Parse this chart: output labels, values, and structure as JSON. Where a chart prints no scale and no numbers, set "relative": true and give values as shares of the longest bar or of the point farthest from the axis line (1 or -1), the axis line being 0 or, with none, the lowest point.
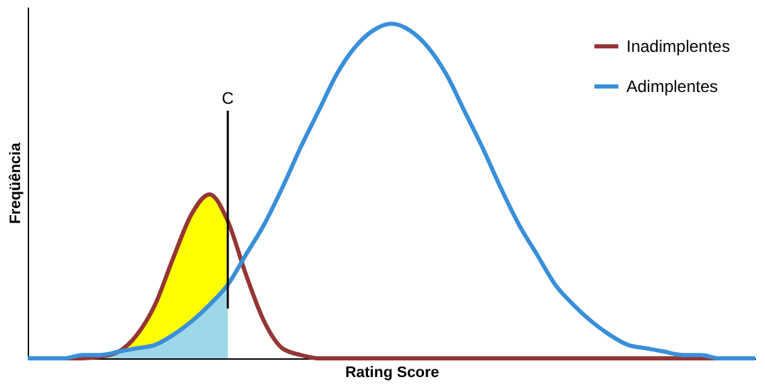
{
  "chart_data": {
    "type": "line",
    "xlabel": "Rating Score",
    "ylabel": "Freqüência",
    "relative": true,
    "categories": [
      null,
      null,
      null,
      null,
      null,
      null,
      null,
      null,
      null,
      null,
      null,
      null,
      null,
      null,
      null,
      null,
      null,
      null,
      null,
      null,
      null,
      null,
      null,
      null,
      null,
      null,
      null,
      null,
      null,
      null,
      null,
      null,
      null,
      null,
      null,
      null,
      null,
      null,
      null,
      null,
      null
    ],
    "series": [
      {
        "type": "area",
        "color": "#ffff00",
        "values": [
          0,
          0,
          0,
          0,
          0.005,
          0.02,
          0.07,
          0.16,
          0.3,
          0.43,
          0.49,
          0.41,
          null,
          null,
          null,
          null,
          null,
          null,
          null,
          null,
          null,
          null,
          null,
          null,
          null,
          null,
          null,
          null,
          null,
          null,
          null,
          null,
          null,
          null,
          null,
          null,
          null,
          null,
          null,
          null,
          null
        ]
      },
      {
        "type": "area",
        "color": "#9fd7ea",
        "values": [
          0,
          0,
          0,
          0.01,
          0.01,
          0.02,
          0.03,
          0.04,
          0.07,
          0.11,
          0.16,
          0.22,
          null,
          null,
          null,
          null,
          null,
          null,
          null,
          null,
          null,
          null,
          null,
          null,
          null,
          null,
          null,
          null,
          null,
          null,
          null,
          null,
          null,
          null,
          null,
          null,
          null,
          null,
          null,
          null,
          null
        ]
      },
      {
        "name": "Inadimplentes",
        "color": "#943634",
        "values": [
          0,
          0,
          0,
          0,
          0.005,
          0.02,
          0.07,
          0.16,
          0.3,
          0.43,
          0.49,
          0.41,
          0.25,
          0.11,
          0.03,
          0.01,
          0,
          0,
          0,
          0,
          0,
          0,
          0,
          0,
          0,
          0,
          0,
          0,
          0,
          0,
          0,
          0,
          0,
          0,
          0,
          0,
          0,
          0,
          0,
          0,
          0
        ]
      },
      {
        "name": "Adimplentes",
        "color": "#3a8fd9",
        "values": [
          0,
          0,
          0,
          0.01,
          0.01,
          0.02,
          0.03,
          0.04,
          0.07,
          0.11,
          0.16,
          0.22,
          0.31,
          0.4,
          0.51,
          0.63,
          0.74,
          0.85,
          0.93,
          0.98,
          1,
          0.98,
          0.93,
          0.85,
          0.74,
          0.63,
          0.51,
          0.4,
          0.31,
          0.22,
          0.16,
          0.11,
          0.07,
          0.04,
          0.03,
          0.02,
          0.01,
          0.01,
          0,
          0,
          0
        ]
      }
    ],
    "annotations": [
      "C"
    ],
    "legend": "top right",
    "grid": false
  }
}
